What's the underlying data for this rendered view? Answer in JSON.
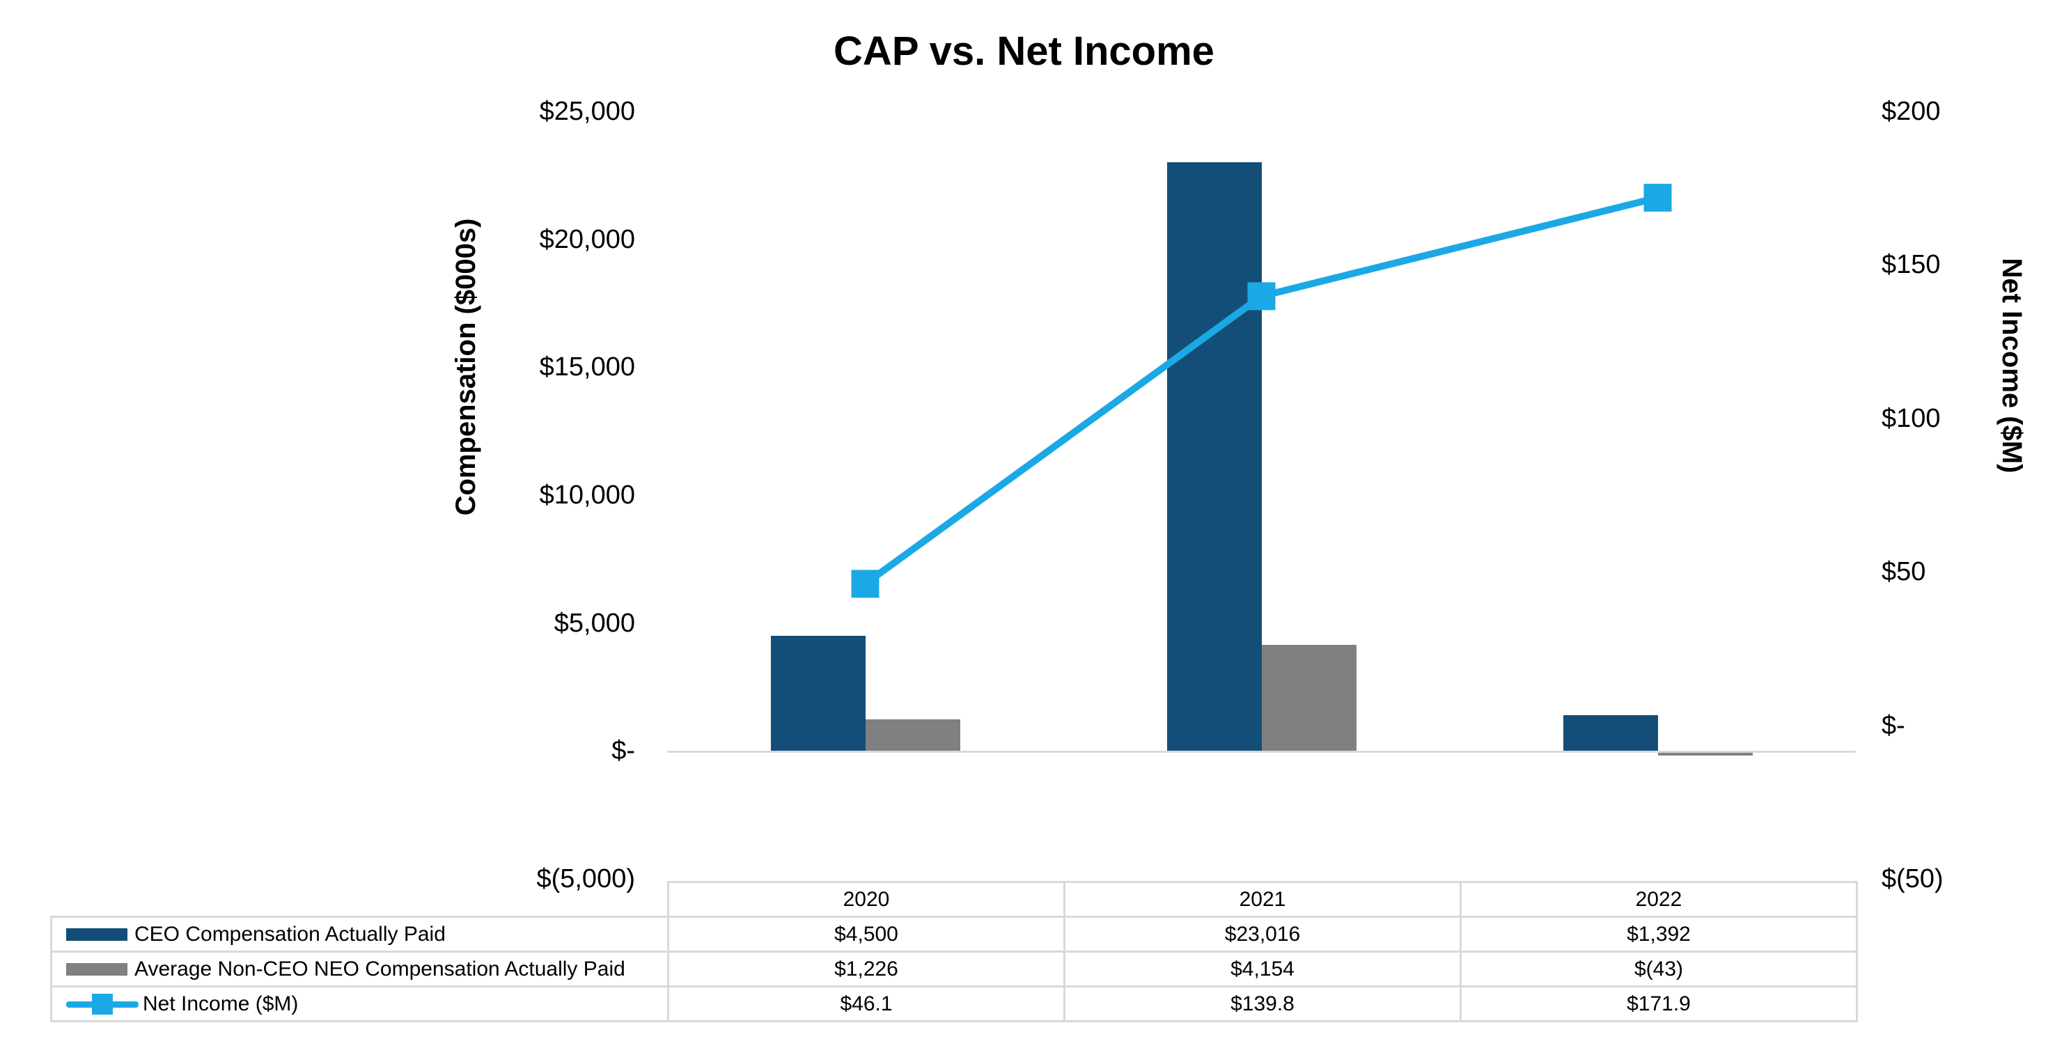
{
  "title": "CAP vs. Net Income",
  "chart_data": {
    "type": "combo",
    "title": "CAP vs. Net Income",
    "categories": [
      "2020",
      "2021",
      "2022"
    ],
    "series": [
      {
        "name": "CEO Compensation Actually Paid",
        "type": "bar",
        "axis": "left",
        "color": "#134E78",
        "values": [
          4500,
          23016,
          1392
        ],
        "value_labels": [
          "$4,500",
          "$23,016",
          "$1,392"
        ]
      },
      {
        "name": "Average Non-CEO NEO Compensation Actually Paid",
        "type": "bar",
        "axis": "left",
        "color": "#808080",
        "values": [
          1226,
          4154,
          -43
        ],
        "value_labels": [
          "$1,226",
          "$4,154",
          "$(43)"
        ]
      },
      {
        "name": "Net Income ($M)",
        "type": "line",
        "axis": "right",
        "color": "#1BA9E5",
        "marker": "square",
        "values": [
          46.1,
          139.8,
          171.9
        ],
        "value_labels": [
          "$46.1",
          "$139.8",
          "$171.9"
        ]
      }
    ],
    "left_axis": {
      "title": "Compensation ($000s)",
      "min": -5000,
      "max": 25000,
      "step": 5000,
      "tick_labels": [
        "$25,000",
        "$20,000",
        "$15,000",
        "$10,000",
        "$5,000",
        "$-",
        "$(5,000)"
      ]
    },
    "right_axis": {
      "title": "Net Income ($M)",
      "min": -50,
      "max": 200,
      "step": 50,
      "tick_labels": [
        "$200",
        "$150",
        "$100",
        "$50",
        "$-",
        "$(50)"
      ]
    },
    "grid": false,
    "legend_position": "bottom-table-left-column",
    "baseline_color": "#D9D9D9",
    "background_color": "#FFFFFF"
  }
}
